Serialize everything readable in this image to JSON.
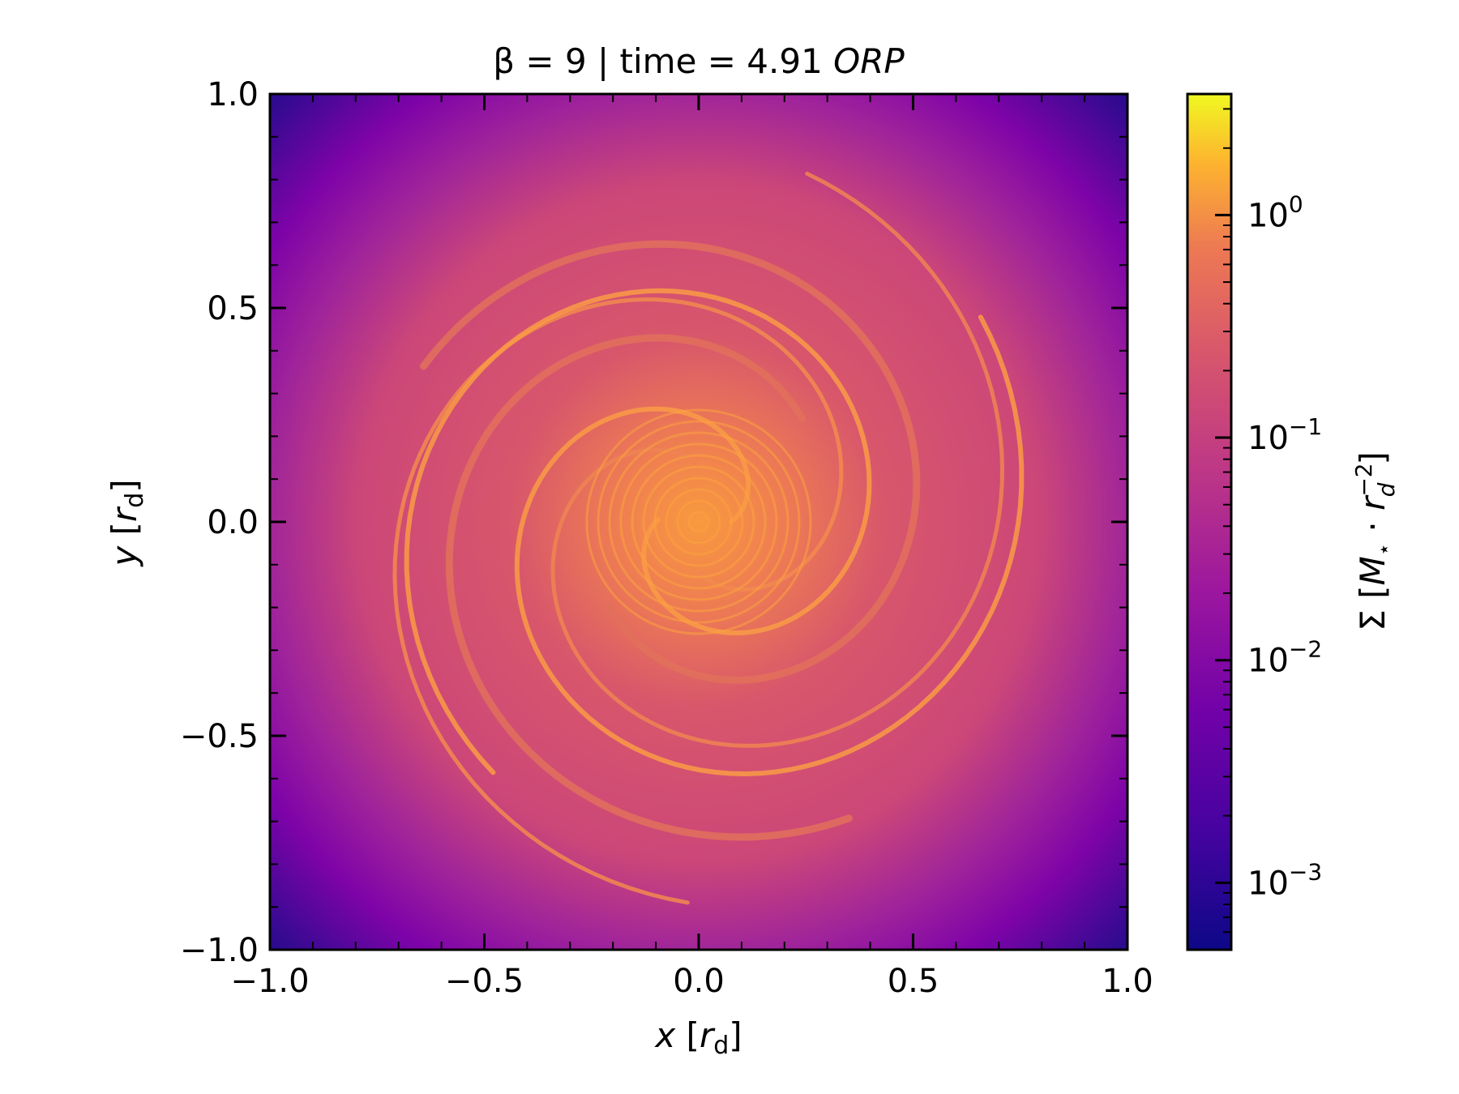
{
  "chart_data": {
    "type": "heatmap",
    "title": "β = 9 | time = 4.91 ORP",
    "title_parts": {
      "prefix": "β = 9 | time = 4.91 ",
      "unit": "ORP"
    },
    "xlabel": "x [r_d]",
    "ylabel": "y [r_d]",
    "xlabel_parts": {
      "var": "x",
      "open": " [",
      "sym": "r",
      "sub": "d",
      "close": "]"
    },
    "ylabel_parts": {
      "var": "y",
      "open": " [",
      "sym": "r",
      "sub": "d",
      "close": "]"
    },
    "xlim": [
      -1.0,
      1.0
    ],
    "ylim": [
      -1.0,
      1.0
    ],
    "xticks": [
      -1.0,
      -0.5,
      0.0,
      0.5,
      1.0
    ],
    "yticks": [
      -1.0,
      -0.5,
      0.0,
      0.5,
      1.0
    ],
    "xtick_labels": [
      "−1.0",
      "−0.5",
      "0.0",
      "0.5",
      "1.0"
    ],
    "ytick_labels": [
      "−1.0",
      "−0.5",
      "0.0",
      "0.5",
      "1.0"
    ],
    "colormap": "plasma",
    "colorbar": {
      "scale": "log",
      "range": [
        0.0005,
        3.5
      ],
      "ticks": [
        0.001,
        0.01,
        0.1,
        1
      ],
      "tick_labels": [
        {
          "base": "10",
          "exp": "−3"
        },
        {
          "base": "10",
          "exp": "−2"
        },
        {
          "base": "10",
          "exp": "−1"
        },
        {
          "base": "10",
          "exp": "0"
        }
      ],
      "label": "Σ [M⋆ · r_d^−2]",
      "label_parts": {
        "pre": "Σ [",
        "m": "M",
        "star": "⋆",
        "mid": " · ",
        "r": "r",
        "sub": "d",
        "sup": "−2",
        "close": "]"
      }
    },
    "description_values": {
      "center_density": 0.5,
      "edge_density": 0.001
    }
  }
}
